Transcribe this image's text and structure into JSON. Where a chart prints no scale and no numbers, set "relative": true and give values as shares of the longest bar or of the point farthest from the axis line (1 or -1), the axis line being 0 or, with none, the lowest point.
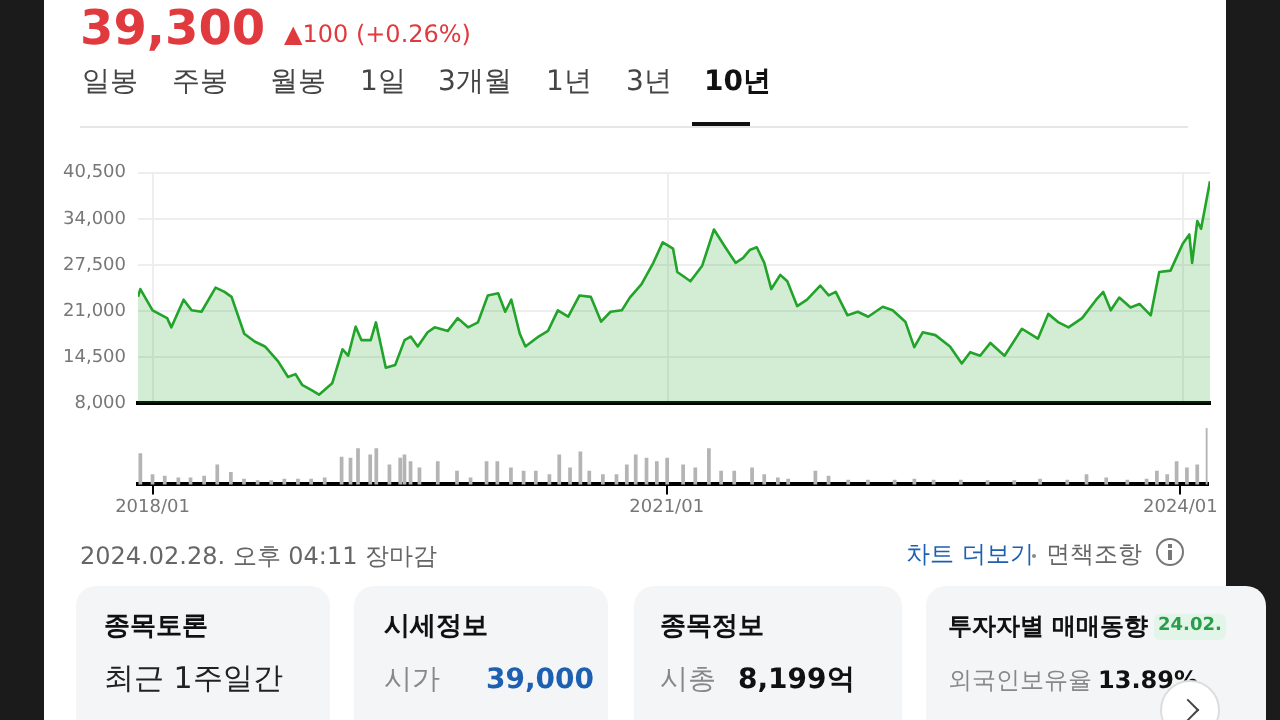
{
  "chart_data": [
    {
      "type": "area",
      "title": "39,300",
      "subtitle": "▲100 (+0.26%)",
      "annotations": [
        "일봉",
        "주봉",
        "월봉",
        "1일",
        "3개월",
        "1년",
        "3년",
        "10년",
        "2024.02.28. 오후 04:11 장마감",
        "차트 더보기",
        "면책조항",
        "종목토론",
        "최근 1주일간",
        "시세정보",
        "시가",
        "39,000",
        "종목정보",
        "시총",
        "8,199억",
        "투자자별 매매동향",
        "24.02.",
        "외국인보유율",
        "13.89%"
      ],
      "x": [
        "2017-12-01",
        "2017-12-06",
        "2018-01-01",
        "2018-02-01",
        "2018-02-10",
        "2018-03-08",
        "2018-03-25",
        "2018-04-15",
        "2018-05-15",
        "2018-06-03",
        "2018-06-18",
        "2018-07-15",
        "2018-08-06",
        "2018-08-28",
        "2018-09-25",
        "2018-10-16",
        "2018-11-01",
        "2018-11-15",
        "2018-12-06",
        "2018-12-21",
        "2019-01-18",
        "2019-02-09",
        "2019-02-21",
        "2019-03-09",
        "2019-03-21",
        "2019-04-10",
        "2019-04-21",
        "2019-05-12",
        "2019-06-01",
        "2019-06-21",
        "2019-07-04",
        "2019-07-19",
        "2019-08-09",
        "2019-08-24",
        "2019-09-21",
        "2019-10-12",
        "2019-11-03",
        "2019-11-24",
        "2019-12-15",
        "2020-01-06",
        "2020-01-21",
        "2020-02-03",
        "2020-02-21",
        "2020-03-04",
        "2020-04-01",
        "2020-04-21",
        "2020-05-12",
        "2020-06-03",
        "2020-06-27",
        "2020-07-21",
        "2020-08-12",
        "2020-09-01",
        "2020-09-25",
        "2020-10-12",
        "2020-11-06",
        "2020-12-01",
        "2020-12-21",
        "2021-01-12",
        "2021-01-21",
        "2021-02-18",
        "2021-03-15",
        "2021-04-09",
        "2021-05-01",
        "2021-05-25",
        "2021-06-10",
        "2021-06-24",
        "2021-07-09",
        "2021-07-25",
        "2021-08-09",
        "2021-08-28",
        "2021-09-12",
        "2021-10-03",
        "2021-10-24",
        "2021-11-21",
        "2021-12-09",
        "2021-12-24",
        "2022-01-18",
        "2022-02-09",
        "2022-03-03",
        "2022-04-03",
        "2022-04-24",
        "2022-05-21",
        "2022-06-09",
        "2022-06-27",
        "2022-07-24",
        "2022-08-24",
        "2022-09-18",
        "2022-10-06",
        "2022-10-27",
        "2022-11-18",
        "2022-12-18",
        "2023-01-24",
        "2023-02-27",
        "2023-03-21",
        "2023-04-12",
        "2023-05-03",
        "2023-06-01",
        "2023-07-01",
        "2023-07-16",
        "2023-08-01",
        "2023-08-19",
        "2023-09-12",
        "2023-10-01",
        "2023-10-25",
        "2023-11-12",
        "2023-12-06",
        "2024-01-01",
        "2024-01-15",
        "2024-01-21",
        "2024-02-01",
        "2024-02-09",
        "2024-02-28"
      ],
      "series": [
        {
          "color": "#22a32a",
          "values": [
            23000,
            24100,
            21100,
            20000,
            18700,
            22600,
            21100,
            20900,
            24300,
            23700,
            23000,
            17800,
            16700,
            16000,
            13900,
            11700,
            12100,
            10600,
            9800,
            9200,
            10800,
            15600,
            14700,
            18800,
            16900,
            16900,
            19400,
            13000,
            13400,
            16900,
            17400,
            16000,
            18000,
            18700,
            18200,
            20000,
            18700,
            19400,
            23200,
            23500,
            20900,
            22600,
            17800,
            16000,
            17400,
            18200,
            21100,
            20200,
            23200,
            23000,
            19500,
            20900,
            21100,
            22900,
            24800,
            27800,
            30700,
            29800,
            26500,
            25200,
            27400,
            32500,
            30200,
            27800,
            28500,
            29600,
            30000,
            27800,
            24100,
            26100,
            25200,
            21700,
            22600,
            24600,
            23200,
            23700,
            20400,
            20900,
            20200,
            21600,
            21100,
            19500,
            15900,
            18000,
            17600,
            16000,
            13600,
            15200,
            14700,
            16500,
            14700,
            18500,
            17100,
            20600,
            19400,
            18700,
            20000,
            22600,
            23700,
            21100,
            22900,
            21500,
            22000,
            20400,
            26500,
            26700,
            30500,
            31800,
            27800,
            33700,
            32600,
            39300
          ]
        }
      ],
      "xlim": [
        "2017-12-01",
        "2024-02-28"
      ],
      "xticks": [
        {
          "value": "2018-01",
          "label": null
        },
        {
          "value": "2021-01",
          "label": null
        },
        {
          "value": "2024-01",
          "label": null
        }
      ],
      "ylim": [
        8000,
        40500
      ],
      "yticks": [
        {
          "value": 8000,
          "label": "8,000"
        },
        {
          "value": 14500,
          "label": "14,500"
        },
        {
          "value": 21000,
          "label": "21,000"
        },
        {
          "value": 27500,
          "label": "27,500"
        },
        {
          "value": 34000,
          "label": "34,000"
        },
        {
          "value": 40500,
          "label": "40,500"
        }
      ],
      "grid": true,
      "tick_labels": "y",
      "marker": "none"
    },
    {
      "type": "bar",
      "relative": true,
      "x": [
        "2017-12-06",
        "2018-01-01",
        "2018-01-27",
        "2018-02-25",
        "2018-03-23",
        "2018-04-21",
        "2018-05-19",
        "2018-06-17",
        "2018-07-15",
        "2018-08-13",
        "2018-09-11",
        "2018-10-09",
        "2018-11-07",
        "2018-12-05",
        "2019-01-03",
        "2019-02-08",
        "2019-02-27",
        "2019-03-15",
        "2019-04-10",
        "2019-04-23",
        "2019-05-21",
        "2019-06-13",
        "2019-06-22",
        "2019-07-05",
        "2019-07-24",
        "2019-09-01",
        "2019-10-12",
        "2019-11-10",
        "2019-12-14",
        "2020-01-06",
        "2020-02-04",
        "2020-03-02",
        "2020-03-28",
        "2020-04-26",
        "2020-05-17",
        "2020-06-09",
        "2020-07-01",
        "2020-07-20",
        "2020-08-18",
        "2020-09-16",
        "2020-10-08",
        "2020-10-27",
        "2020-11-19",
        "2020-12-11",
        "2021-01-02",
        "2021-02-05",
        "2021-03-03",
        "2021-04-01",
        "2021-04-27",
        "2021-05-25",
        "2021-07-02",
        "2021-07-28",
        "2021-08-26",
        "2021-09-17",
        "2021-11-14",
        "2021-12-12",
        "2022-01-23",
        "2022-03-06",
        "2022-05-02",
        "2022-06-13",
        "2022-07-24",
        "2022-09-20",
        "2022-11-16",
        "2023-01-12",
        "2023-03-08",
        "2023-05-05",
        "2023-06-15",
        "2023-07-27",
        "2023-09-10",
        "2023-10-21",
        "2023-11-12",
        "2023-12-04",
        "2023-12-24",
        "2024-01-15",
        "2024-02-06",
        "2024-02-28"
      ],
      "series": [
        {
          "color": "#b4b4b4",
          "values": [
            0.54,
            0.17,
            0.14,
            0.11,
            0.11,
            0.14,
            0.34,
            0.21,
            0.09,
            0.06,
            0.06,
            0.09,
            0.09,
            0.09,
            0.11,
            0.48,
            0.46,
            0.63,
            0.52,
            0.63,
            0.34,
            0.46,
            0.52,
            0.4,
            0.29,
            0.4,
            0.23,
            0.11,
            0.4,
            0.4,
            0.29,
            0.23,
            0.23,
            0.17,
            0.52,
            0.29,
            0.57,
            0.23,
            0.17,
            0.17,
            0.34,
            0.52,
            0.46,
            0.4,
            0.46,
            0.34,
            0.29,
            0.63,
            0.23,
            0.23,
            0.29,
            0.17,
            0.11,
            0.09,
            0.23,
            0.14,
            0.07,
            0.07,
            0.07,
            0.09,
            0.07,
            0.07,
            0.06,
            0.06,
            0.09,
            0.07,
            0.17,
            0.11,
            0.07,
            0.09,
            0.23,
            0.17,
            0.4,
            0.29,
            0.34,
            1
          ]
        }
      ],
      "xlim": [
        "2017-12-01",
        "2024-02-28"
      ],
      "xticks": [
        {
          "value": "2018-01",
          "label": "2018/01"
        },
        {
          "value": "2021-01",
          "label": "2021/01"
        },
        {
          "value": "2024-01",
          "label": "2024/01"
        }
      ]
    }
  ]
}
